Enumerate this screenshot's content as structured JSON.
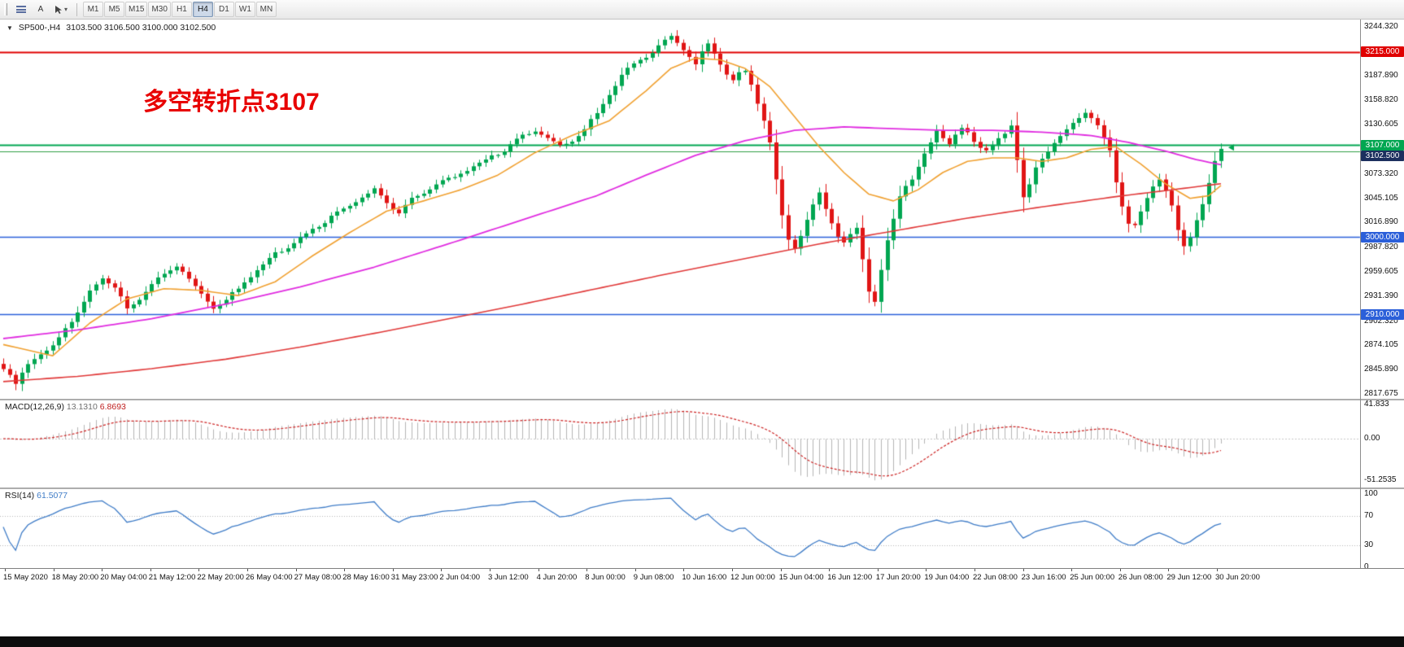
{
  "toolbar": {
    "text_tool": "A",
    "caret": "▾",
    "timeframes": [
      "M1",
      "M5",
      "M15",
      "M30",
      "H1",
      "H4",
      "D1",
      "W1",
      "MN"
    ],
    "active_timeframe": "H4"
  },
  "main_chart": {
    "marker": "▼",
    "symbol": "SP500-,H4",
    "ohlc": "3103.500 3106.500 3100.000 3102.500",
    "annotation": {
      "text": "多空转折点3107",
      "color": "#e80000"
    },
    "price_axis": {
      "ticks": [
        "3244.320",
        "3187.890",
        "3158.820",
        "3130.605",
        "3073.320",
        "3045.105",
        "3016.890",
        "2987.820",
        "2959.605",
        "2931.390",
        "2902.320",
        "2874.105",
        "2845.890",
        "2817.675"
      ],
      "tick_values": [
        3244.32,
        3187.89,
        3158.82,
        3130.605,
        3073.32,
        3045.105,
        3016.89,
        2987.82,
        2959.605,
        2931.39,
        2902.32,
        2874.105,
        2845.89,
        2817.675
      ],
      "badges": [
        {
          "text": "3215.000",
          "price": 3215.0,
          "bg": "#e00000",
          "fg": "#ffffff"
        },
        {
          "text": "3107.000",
          "price": 3107.0,
          "bg": "#00a651",
          "fg": "#ffffff"
        },
        {
          "text": "3102.500",
          "price": 3102.5,
          "bg": "#1c2f5e",
          "fg": "#ffffff"
        },
        {
          "text": "3000.000",
          "price": 3000.0,
          "bg": "#2b5fd9",
          "fg": "#ffffff"
        },
        {
          "text": "2910.000",
          "price": 2910.0,
          "bg": "#2b5fd9",
          "fg": "#ffffff"
        }
      ]
    },
    "colors": {
      "bull": "#00a651",
      "bear": "#e01515",
      "ma_fast": "#f0a030",
      "ma_mid": "#e02ce0",
      "ma_slow": "#e03838"
    }
  },
  "macd": {
    "name": "MACD(12,26,9)",
    "value_main": "13.1310",
    "value_signal": "6.8693",
    "axis": [
      "41.833",
      "0.00",
      "-51.2535"
    ],
    "axis_values": [
      41.833,
      0,
      -51.2535
    ],
    "colors": {
      "hist": "#b4b4b4",
      "signal": "#cc2222"
    }
  },
  "rsi": {
    "name": "RSI(14)",
    "value": "61.5077",
    "axis": [
      "100",
      "70",
      "30",
      "0"
    ],
    "axis_values": [
      100,
      70,
      30,
      0
    ],
    "levels": [
      70,
      30
    ],
    "color": "#3f7cc7"
  },
  "time_axis": {
    "labels": [
      "15 May 2020",
      "18 May 20:00",
      "20 May 04:00",
      "21 May 12:00",
      "22 May 20:00",
      "26 May 04:00",
      "27 May 08:00",
      "28 May 16:00",
      "31 May 23:00",
      "2 Jun 04:00",
      "3 Jun 12:00",
      "4 Jun 20:00",
      "8 Jun 00:00",
      "9 Jun 08:00",
      "10 Jun 16:00",
      "12 Jun 00:00",
      "15 Jun 04:00",
      "16 Jun 12:00",
      "17 Jun 20:00",
      "19 Jun 04:00",
      "22 Jun 08:00",
      "23 Jun 16:00",
      "25 Jun 00:00",
      "26 Jun 08:00",
      "29 Jun 12:00",
      "30 Jun 20:00"
    ]
  },
  "chart_data": {
    "type": "candlestick",
    "symbol": "SP500",
    "timeframe": "H4",
    "bars": 198,
    "last_ohlc": {
      "open": 3103.5,
      "high": 3106.5,
      "low": 3100.0,
      "close": 3102.5
    },
    "price_range": [
      2817.675,
      3244.32
    ],
    "h_lines": [
      {
        "price": 3215.0,
        "color": "#e00000",
        "width": 2
      },
      {
        "price": 3107.0,
        "color": "#00a651",
        "width": 2
      },
      {
        "price": 3100.0,
        "color": "#2f9e44",
        "width": 1
      },
      {
        "price": 3000.0,
        "color": "#2b5fd9",
        "width": 1.5
      },
      {
        "price": 2910.0,
        "color": "#2b5fd9",
        "width": 1.5
      }
    ],
    "close_path_anchors": [
      [
        0,
        2848
      ],
      [
        1,
        2836
      ],
      [
        2,
        2828
      ],
      [
        3,
        2840
      ],
      [
        4,
        2852
      ],
      [
        6,
        2862
      ],
      [
        8,
        2872
      ],
      [
        10,
        2898
      ],
      [
        12,
        2912
      ],
      [
        14,
        2938
      ],
      [
        16,
        2952
      ],
      [
        18,
        2938
      ],
      [
        20,
        2916
      ],
      [
        22,
        2928
      ],
      [
        24,
        2946
      ],
      [
        26,
        2958
      ],
      [
        28,
        2968
      ],
      [
        30,
        2952
      ],
      [
        32,
        2932
      ],
      [
        34,
        2918
      ],
      [
        36,
        2925
      ],
      [
        38,
        2940
      ],
      [
        40,
        2956
      ],
      [
        42,
        2968
      ],
      [
        44,
        2982
      ],
      [
        46,
        2990
      ],
      [
        48,
        2996
      ],
      [
        50,
        3008
      ],
      [
        52,
        3018
      ],
      [
        54,
        3028
      ],
      [
        56,
        3038
      ],
      [
        58,
        3048
      ],
      [
        60,
        3055
      ],
      [
        62,
        3040
      ],
      [
        64,
        3028
      ],
      [
        66,
        3042
      ],
      [
        68,
        3052
      ],
      [
        70,
        3062
      ],
      [
        72,
        3068
      ],
      [
        74,
        3075
      ],
      [
        76,
        3082
      ],
      [
        78,
        3088
      ],
      [
        80,
        3096
      ],
      [
        82,
        3106
      ],
      [
        84,
        3116
      ],
      [
        86,
        3124
      ],
      [
        88,
        3118
      ],
      [
        90,
        3106
      ],
      [
        92,
        3112
      ],
      [
        94,
        3125
      ],
      [
        96,
        3142
      ],
      [
        98,
        3165
      ],
      [
        100,
        3188
      ],
      [
        102,
        3202
      ],
      [
        104,
        3212
      ],
      [
        106,
        3222
      ],
      [
        108,
        3232
      ],
      [
        109,
        3226
      ],
      [
        110,
        3218
      ],
      [
        111,
        3208
      ],
      [
        112,
        3200
      ],
      [
        113,
        3212
      ],
      [
        114,
        3224
      ],
      [
        115,
        3215
      ],
      [
        116,
        3202
      ],
      [
        117,
        3190
      ],
      [
        118,
        3182
      ],
      [
        119,
        3190
      ],
      [
        120,
        3195
      ],
      [
        121,
        3178
      ],
      [
        122,
        3158
      ],
      [
        123,
        3135
      ],
      [
        124,
        3108
      ],
      [
        125,
        3065
      ],
      [
        126,
        3022
      ],
      [
        127,
        2998
      ],
      [
        128,
        2988
      ],
      [
        129,
        3002
      ],
      [
        130,
        3018
      ],
      [
        131,
        3035
      ],
      [
        132,
        3052
      ],
      [
        133,
        3035
      ],
      [
        134,
        3018
      ],
      [
        135,
        3002
      ],
      [
        136,
        2992
      ],
      [
        137,
        3002
      ],
      [
        138,
        3012
      ],
      [
        139,
        2975
      ],
      [
        140,
        2938
      ],
      [
        141,
        2922
      ],
      [
        142,
        2958
      ],
      [
        143,
        2992
      ],
      [
        144,
        3022
      ],
      [
        145,
        3048
      ],
      [
        146,
        3060
      ],
      [
        147,
        3068
      ],
      [
        148,
        3082
      ],
      [
        149,
        3098
      ],
      [
        150,
        3112
      ],
      [
        151,
        3126
      ],
      [
        152,
        3118
      ],
      [
        153,
        3108
      ],
      [
        154,
        3118
      ],
      [
        155,
        3126
      ],
      [
        156,
        3120
      ],
      [
        157,
        3112
      ],
      [
        158,
        3104
      ],
      [
        159,
        3098
      ],
      [
        160,
        3106
      ],
      [
        161,
        3114
      ],
      [
        162,
        3122
      ],
      [
        163,
        3132
      ],
      [
        164,
        3092
      ],
      [
        165,
        3048
      ],
      [
        166,
        3062
      ],
      [
        167,
        3080
      ],
      [
        168,
        3092
      ],
      [
        169,
        3102
      ],
      [
        170,
        3110
      ],
      [
        171,
        3116
      ],
      [
        172,
        3122
      ],
      [
        173,
        3130
      ],
      [
        174,
        3138
      ],
      [
        175,
        3146
      ],
      [
        176,
        3138
      ],
      [
        177,
        3128
      ],
      [
        178,
        3115
      ],
      [
        179,
        3102
      ],
      [
        180,
        3068
      ],
      [
        181,
        3040
      ],
      [
        182,
        3018
      ],
      [
        183,
        3012
      ],
      [
        184,
        3028
      ],
      [
        185,
        3046
      ],
      [
        186,
        3060
      ],
      [
        187,
        3066
      ],
      [
        188,
        3052
      ],
      [
        189,
        3035
      ],
      [
        190,
        3005
      ],
      [
        191,
        2990
      ],
      [
        192,
        3002
      ],
      [
        193,
        3022
      ],
      [
        194,
        3040
      ],
      [
        195,
        3062
      ],
      [
        196,
        3088
      ],
      [
        197,
        3102.5
      ]
    ],
    "moving_averages": [
      {
        "name": "fast-ma",
        "color": "#f0a030",
        "width": 1.6,
        "anchors": [
          [
            0,
            2875
          ],
          [
            8,
            2862
          ],
          [
            14,
            2900
          ],
          [
            20,
            2928
          ],
          [
            26,
            2940
          ],
          [
            32,
            2938
          ],
          [
            38,
            2932
          ],
          [
            44,
            2948
          ],
          [
            50,
            2978
          ],
          [
            56,
            3005
          ],
          [
            62,
            3030
          ],
          [
            68,
            3042
          ],
          [
            74,
            3055
          ],
          [
            80,
            3072
          ],
          [
            86,
            3098
          ],
          [
            92,
            3118
          ],
          [
            98,
            3135
          ],
          [
            104,
            3170
          ],
          [
            108,
            3196
          ],
          [
            112,
            3208
          ],
          [
            116,
            3206
          ],
          [
            120,
            3196
          ],
          [
            124,
            3175
          ],
          [
            128,
            3140
          ],
          [
            132,
            3105
          ],
          [
            136,
            3075
          ],
          [
            140,
            3050
          ],
          [
            144,
            3042
          ],
          [
            148,
            3055
          ],
          [
            152,
            3075
          ],
          [
            156,
            3088
          ],
          [
            160,
            3092
          ],
          [
            164,
            3092
          ],
          [
            168,
            3088
          ],
          [
            172,
            3092
          ],
          [
            176,
            3102
          ],
          [
            180,
            3105
          ],
          [
            184,
            3085
          ],
          [
            188,
            3062
          ],
          [
            192,
            3045
          ],
          [
            195,
            3048
          ],
          [
            197,
            3060
          ]
        ]
      },
      {
        "name": "mid-ma",
        "color": "#e02ce0",
        "width": 1.8,
        "anchors": [
          [
            0,
            2882
          ],
          [
            12,
            2892
          ],
          [
            24,
            2905
          ],
          [
            36,
            2922
          ],
          [
            48,
            2942
          ],
          [
            60,
            2965
          ],
          [
            72,
            2992
          ],
          [
            84,
            3020
          ],
          [
            96,
            3048
          ],
          [
            104,
            3072
          ],
          [
            112,
            3095
          ],
          [
            120,
            3112
          ],
          [
            128,
            3124
          ],
          [
            136,
            3128
          ],
          [
            144,
            3126
          ],
          [
            152,
            3124
          ],
          [
            160,
            3124
          ],
          [
            168,
            3122
          ],
          [
            176,
            3118
          ],
          [
            182,
            3110
          ],
          [
            188,
            3100
          ],
          [
            193,
            3090
          ],
          [
            197,
            3084
          ]
        ]
      },
      {
        "name": "slow-ma",
        "color": "#e03838",
        "width": 1.6,
        "anchors": [
          [
            0,
            2832
          ],
          [
            12,
            2838
          ],
          [
            24,
            2847
          ],
          [
            36,
            2858
          ],
          [
            48,
            2872
          ],
          [
            60,
            2888
          ],
          [
            72,
            2905
          ],
          [
            84,
            2922
          ],
          [
            96,
            2940
          ],
          [
            108,
            2958
          ],
          [
            120,
            2975
          ],
          [
            132,
            2992
          ],
          [
            144,
            3007
          ],
          [
            156,
            3022
          ],
          [
            168,
            3035
          ],
          [
            180,
            3047
          ],
          [
            188,
            3054
          ],
          [
            197,
            3062
          ]
        ]
      }
    ],
    "end_marker": {
      "price": 3104,
      "color": "#00a651"
    },
    "indicators": {
      "macd": {
        "params": [
          12,
          26,
          9
        ],
        "main": 13.131,
        "signal": 6.8693,
        "scale_max": 41.833,
        "scale_min": -51.2535
      },
      "rsi": {
        "period": 14,
        "value": 61.5077,
        "levels": [
          70,
          30
        ]
      }
    }
  }
}
